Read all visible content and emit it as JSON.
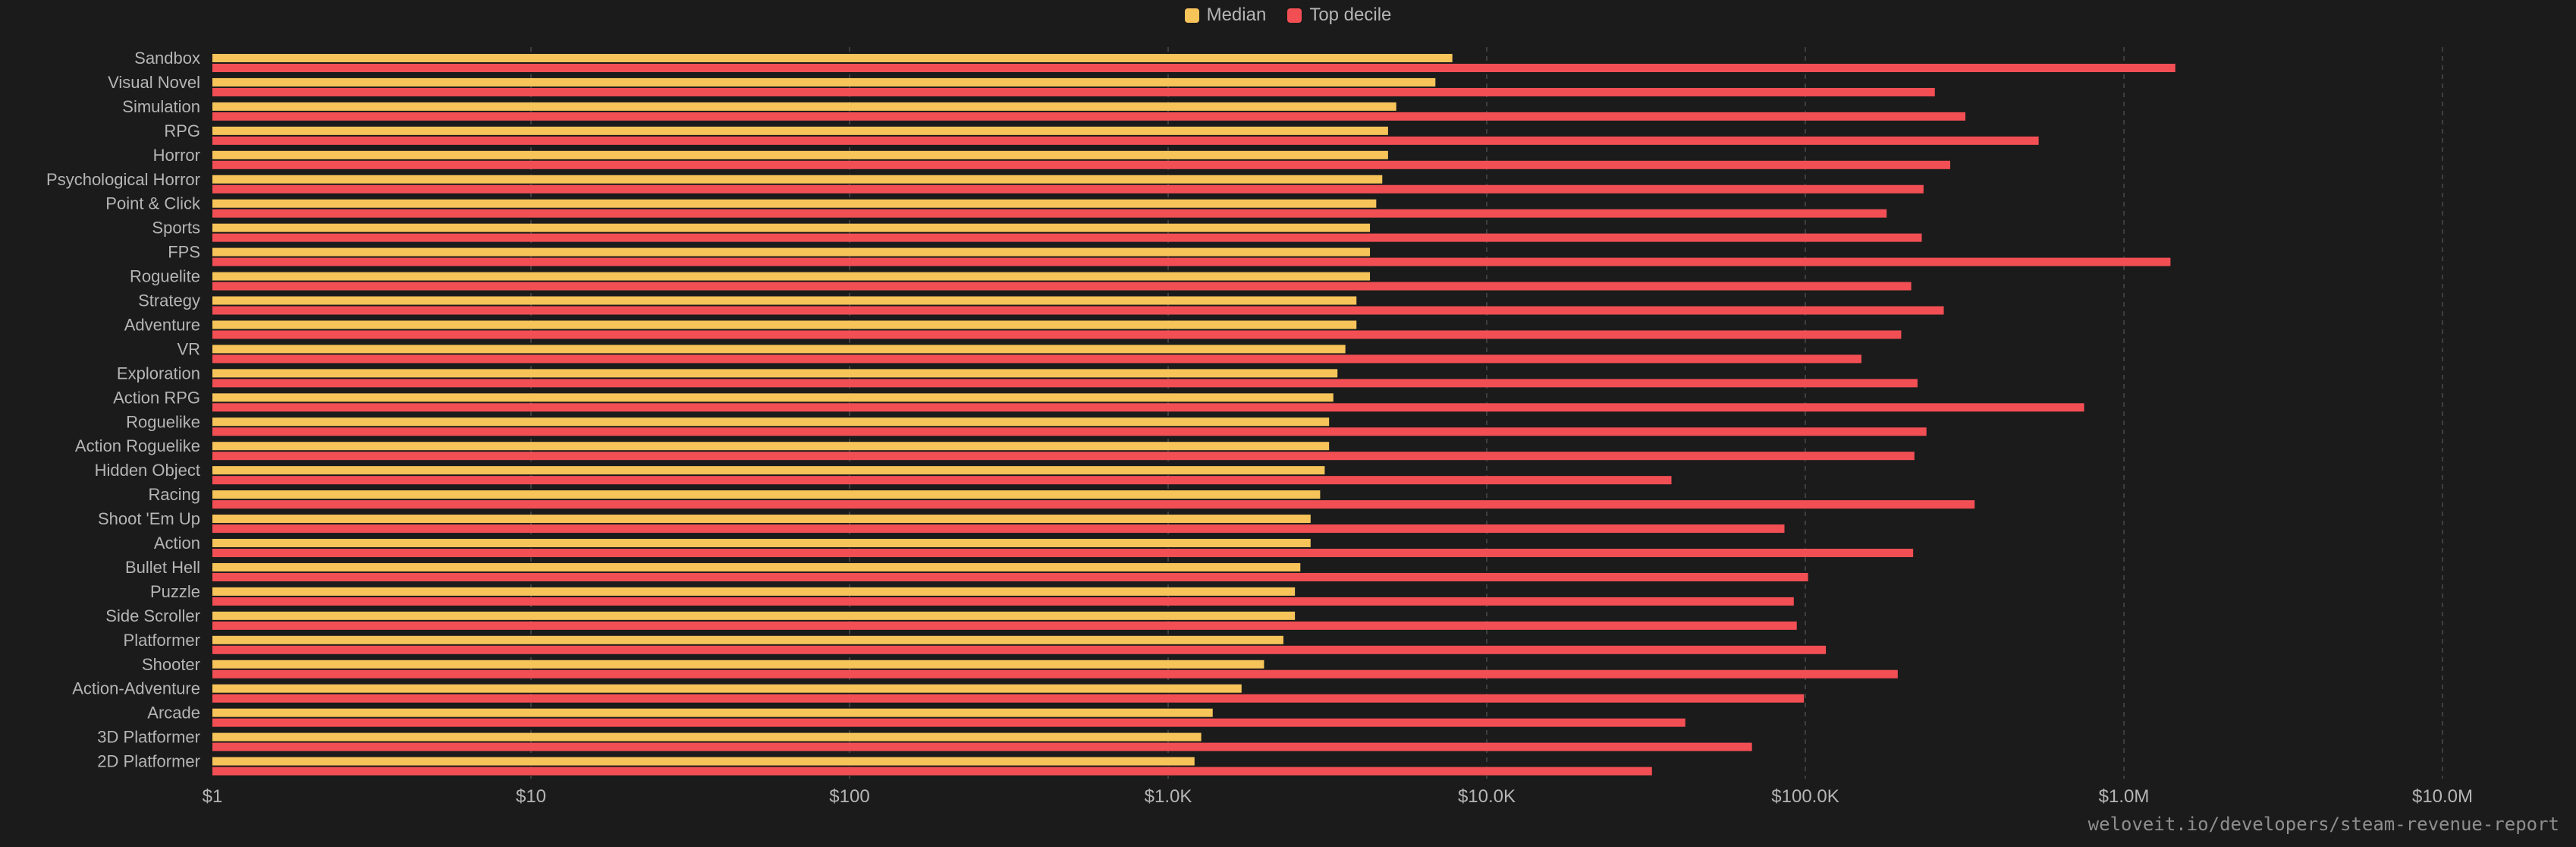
{
  "source_text": "weloveit.io/developers/steam-revenue-report",
  "colors": {
    "median": "#f7c45a",
    "top_decile": "#f24f55",
    "background": "#1b1b1b",
    "grid": "#4a4a4a",
    "label": "#b5b5b5"
  },
  "chart_data": {
    "type": "bar",
    "orientation": "horizontal",
    "scale": "log",
    "xlim": [
      1,
      30000000
    ],
    "grid": true,
    "legend_position": "top-center",
    "x_ticks": [
      {
        "value": 1,
        "label": "$1"
      },
      {
        "value": 10,
        "label": "$10"
      },
      {
        "value": 100,
        "label": "$100"
      },
      {
        "value": 1000,
        "label": "$1.0K"
      },
      {
        "value": 10000,
        "label": "$10.0K"
      },
      {
        "value": 100000,
        "label": "$100.0K"
      },
      {
        "value": 1000000,
        "label": "$1.0M"
      },
      {
        "value": 10000000,
        "label": "$10.0M"
      }
    ],
    "categories": [
      "Sandbox",
      "Visual Novel",
      "Simulation",
      "RPG",
      "Horror",
      "Psychological Horror",
      "Point & Click",
      "Sports",
      "FPS",
      "Roguelite",
      "Strategy",
      "Adventure",
      "VR",
      "Exploration",
      "Action RPG",
      "Roguelike",
      "Action Roguelike",
      "Hidden Object",
      "Racing",
      "Shoot 'Em Up",
      "Action",
      "Bullet Hell",
      "Puzzle",
      "Side Scroller",
      "Platformer",
      "Shooter",
      "Action-Adventure",
      "Arcade",
      "3D Platformer",
      "2D Platformer"
    ],
    "series": [
      {
        "name": "Median",
        "values": [
          7800,
          6900,
          5200,
          4900,
          4900,
          4700,
          4500,
          4300,
          4300,
          4300,
          3900,
          3900,
          3600,
          3400,
          3300,
          3200,
          3200,
          3100,
          3000,
          2800,
          2800,
          2600,
          2500,
          2500,
          2300,
          2000,
          1700,
          1380,
          1270,
          1210
        ]
      },
      {
        "name": "Top decile",
        "values": [
          1450000,
          255000,
          318000,
          540000,
          285000,
          235000,
          180000,
          232000,
          1400000,
          215000,
          272000,
          200000,
          150000,
          225000,
          750000,
          240000,
          220000,
          38000,
          340000,
          86000,
          218000,
          102000,
          92000,
          94000,
          116000,
          195000,
          99000,
          42000,
          68000,
          33000
        ]
      }
    ]
  }
}
